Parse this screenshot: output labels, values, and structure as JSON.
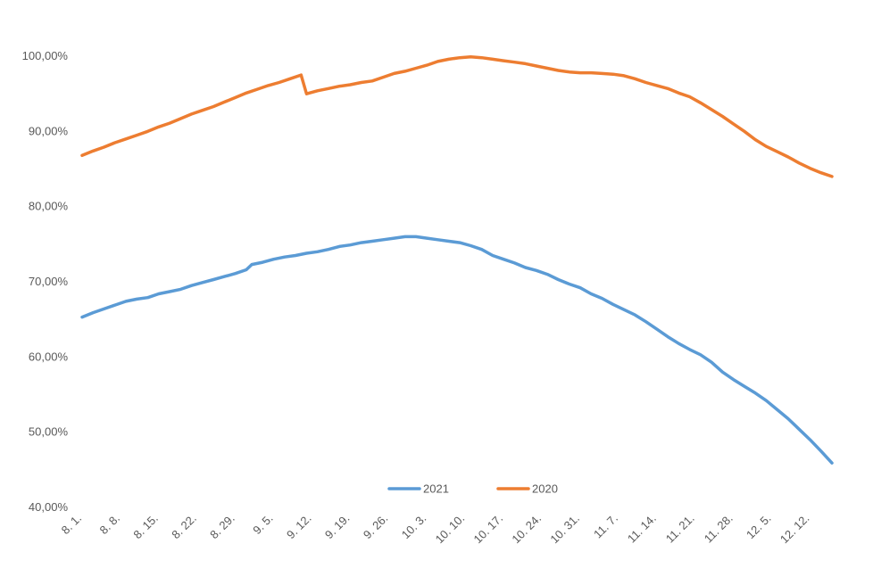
{
  "chart_data": {
    "type": "line",
    "title": "",
    "xlabel": "",
    "ylabel": "",
    "ylim": [
      40,
      100
    ],
    "y_ticks": [
      "40,00%",
      "50,00%",
      "60,00%",
      "70,00%",
      "80,00%",
      "90,00%",
      "100,00%"
    ],
    "x_range": [
      "2021-08-01",
      "2021-12-16"
    ],
    "x_tick_labels": [
      {
        "date": "2021-08-01",
        "label": "8. 1."
      },
      {
        "date": "2021-08-08",
        "label": "8. 8."
      },
      {
        "date": "2021-08-15",
        "label": "8. 15."
      },
      {
        "date": "2021-08-22",
        "label": "8. 22."
      },
      {
        "date": "2021-08-29",
        "label": "8. 29."
      },
      {
        "date": "2021-09-05",
        "label": "9. 5."
      },
      {
        "date": "2021-09-12",
        "label": "9. 12."
      },
      {
        "date": "2021-09-19",
        "label": "9. 19."
      },
      {
        "date": "2021-09-26",
        "label": "9. 26."
      },
      {
        "date": "2021-10-03",
        "label": "10. 3."
      },
      {
        "date": "2021-10-10",
        "label": "10. 10."
      },
      {
        "date": "2021-10-17",
        "label": "10. 17."
      },
      {
        "date": "2021-10-24",
        "label": "10. 24."
      },
      {
        "date": "2021-10-31",
        "label": "10. 31."
      },
      {
        "date": "2021-11-07",
        "label": "11. 7."
      },
      {
        "date": "2021-11-14",
        "label": "11. 14."
      },
      {
        "date": "2021-11-21",
        "label": "11. 21."
      },
      {
        "date": "2021-11-28",
        "label": "11. 28."
      },
      {
        "date": "2021-12-05",
        "label": "12. 5."
      },
      {
        "date": "2021-12-12",
        "label": "12. 12."
      }
    ],
    "grid": false,
    "legend_position": "bottom",
    "series": [
      {
        "name": "2021",
        "color": "#5b9bd5",
        "points": [
          [
            "2021-08-01",
            65.3
          ],
          [
            "2021-08-03",
            65.9
          ],
          [
            "2021-08-05",
            66.4
          ],
          [
            "2021-08-07",
            66.9
          ],
          [
            "2021-08-09",
            67.4
          ],
          [
            "2021-08-11",
            67.7
          ],
          [
            "2021-08-13",
            67.9
          ],
          [
            "2021-08-15",
            68.4
          ],
          [
            "2021-08-17",
            68.7
          ],
          [
            "2021-08-19",
            69.0
          ],
          [
            "2021-08-21",
            69.5
          ],
          [
            "2021-08-23",
            69.9
          ],
          [
            "2021-08-25",
            70.3
          ],
          [
            "2021-08-27",
            70.7
          ],
          [
            "2021-08-29",
            71.1
          ],
          [
            "2021-08-31",
            71.6
          ],
          [
            "2021-09-01",
            72.3
          ],
          [
            "2021-09-03",
            72.6
          ],
          [
            "2021-09-05",
            73.0
          ],
          [
            "2021-09-07",
            73.3
          ],
          [
            "2021-09-09",
            73.5
          ],
          [
            "2021-09-11",
            73.8
          ],
          [
            "2021-09-13",
            74.0
          ],
          [
            "2021-09-15",
            74.3
          ],
          [
            "2021-09-17",
            74.7
          ],
          [
            "2021-09-19",
            74.9
          ],
          [
            "2021-09-21",
            75.2
          ],
          [
            "2021-09-23",
            75.4
          ],
          [
            "2021-09-25",
            75.6
          ],
          [
            "2021-09-27",
            75.8
          ],
          [
            "2021-09-29",
            76.0
          ],
          [
            "2021-10-01",
            76.0
          ],
          [
            "2021-10-03",
            75.8
          ],
          [
            "2021-10-05",
            75.6
          ],
          [
            "2021-10-07",
            75.4
          ],
          [
            "2021-10-09",
            75.2
          ],
          [
            "2021-10-11",
            74.8
          ],
          [
            "2021-10-13",
            74.3
          ],
          [
            "2021-10-15",
            73.5
          ],
          [
            "2021-10-17",
            73.0
          ],
          [
            "2021-10-19",
            72.5
          ],
          [
            "2021-10-21",
            71.9
          ],
          [
            "2021-10-23",
            71.5
          ],
          [
            "2021-10-25",
            71.0
          ],
          [
            "2021-10-27",
            70.3
          ],
          [
            "2021-10-29",
            69.7
          ],
          [
            "2021-10-31",
            69.2
          ],
          [
            "2021-11-02",
            68.4
          ],
          [
            "2021-11-04",
            67.8
          ],
          [
            "2021-11-06",
            67.0
          ],
          [
            "2021-11-08",
            66.3
          ],
          [
            "2021-11-10",
            65.6
          ],
          [
            "2021-11-12",
            64.7
          ],
          [
            "2021-11-14",
            63.7
          ],
          [
            "2021-11-16",
            62.7
          ],
          [
            "2021-11-18",
            61.8
          ],
          [
            "2021-11-20",
            61.0
          ],
          [
            "2021-11-22",
            60.3
          ],
          [
            "2021-11-24",
            59.3
          ],
          [
            "2021-11-26",
            58.0
          ],
          [
            "2021-11-28",
            57.0
          ],
          [
            "2021-11-30",
            56.1
          ],
          [
            "2021-12-02",
            55.2
          ],
          [
            "2021-12-04",
            54.2
          ],
          [
            "2021-12-06",
            53.0
          ],
          [
            "2021-12-08",
            51.8
          ],
          [
            "2021-12-10",
            50.4
          ],
          [
            "2021-12-12",
            49.0
          ],
          [
            "2021-12-14",
            47.5
          ],
          [
            "2021-12-16",
            45.9
          ]
        ]
      },
      {
        "name": "2020",
        "color": "#ed7d31",
        "points": [
          [
            "2021-08-01",
            86.8
          ],
          [
            "2021-08-03",
            87.4
          ],
          [
            "2021-08-05",
            87.9
          ],
          [
            "2021-08-07",
            88.5
          ],
          [
            "2021-08-09",
            89.0
          ],
          [
            "2021-08-11",
            89.5
          ],
          [
            "2021-08-13",
            90.0
          ],
          [
            "2021-08-15",
            90.6
          ],
          [
            "2021-08-17",
            91.1
          ],
          [
            "2021-08-19",
            91.7
          ],
          [
            "2021-08-21",
            92.3
          ],
          [
            "2021-08-23",
            92.8
          ],
          [
            "2021-08-25",
            93.3
          ],
          [
            "2021-08-27",
            93.9
          ],
          [
            "2021-08-29",
            94.5
          ],
          [
            "2021-08-31",
            95.1
          ],
          [
            "2021-09-02",
            95.6
          ],
          [
            "2021-09-04",
            96.1
          ],
          [
            "2021-09-06",
            96.5
          ],
          [
            "2021-09-08",
            97.0
          ],
          [
            "2021-09-10",
            97.5
          ],
          [
            "2021-09-11",
            95.0
          ],
          [
            "2021-09-13",
            95.4
          ],
          [
            "2021-09-15",
            95.7
          ],
          [
            "2021-09-17",
            96.0
          ],
          [
            "2021-09-19",
            96.2
          ],
          [
            "2021-09-21",
            96.5
          ],
          [
            "2021-09-23",
            96.7
          ],
          [
            "2021-09-25",
            97.2
          ],
          [
            "2021-09-27",
            97.7
          ],
          [
            "2021-09-29",
            98.0
          ],
          [
            "2021-10-01",
            98.4
          ],
          [
            "2021-10-03",
            98.8
          ],
          [
            "2021-10-05",
            99.3
          ],
          [
            "2021-10-07",
            99.6
          ],
          [
            "2021-10-09",
            99.8
          ],
          [
            "2021-10-11",
            99.9
          ],
          [
            "2021-10-13",
            99.8
          ],
          [
            "2021-10-15",
            99.6
          ],
          [
            "2021-10-17",
            99.4
          ],
          [
            "2021-10-19",
            99.2
          ],
          [
            "2021-10-21",
            99.0
          ],
          [
            "2021-10-23",
            98.7
          ],
          [
            "2021-10-25",
            98.4
          ],
          [
            "2021-10-27",
            98.1
          ],
          [
            "2021-10-29",
            97.9
          ],
          [
            "2021-10-31",
            97.8
          ],
          [
            "2021-11-02",
            97.8
          ],
          [
            "2021-11-04",
            97.7
          ],
          [
            "2021-11-06",
            97.6
          ],
          [
            "2021-11-08",
            97.4
          ],
          [
            "2021-11-10",
            97.0
          ],
          [
            "2021-11-12",
            96.5
          ],
          [
            "2021-11-14",
            96.1
          ],
          [
            "2021-11-16",
            95.7
          ],
          [
            "2021-11-18",
            95.1
          ],
          [
            "2021-11-20",
            94.6
          ],
          [
            "2021-11-22",
            93.8
          ],
          [
            "2021-11-24",
            92.9
          ],
          [
            "2021-11-26",
            92.0
          ],
          [
            "2021-11-28",
            91.0
          ],
          [
            "2021-11-30",
            90.0
          ],
          [
            "2021-12-02",
            88.9
          ],
          [
            "2021-12-04",
            88.0
          ],
          [
            "2021-12-06",
            87.3
          ],
          [
            "2021-12-08",
            86.6
          ],
          [
            "2021-12-10",
            85.8
          ],
          [
            "2021-12-12",
            85.1
          ],
          [
            "2021-12-14",
            84.5
          ],
          [
            "2021-12-16",
            84.0
          ]
        ]
      }
    ]
  }
}
